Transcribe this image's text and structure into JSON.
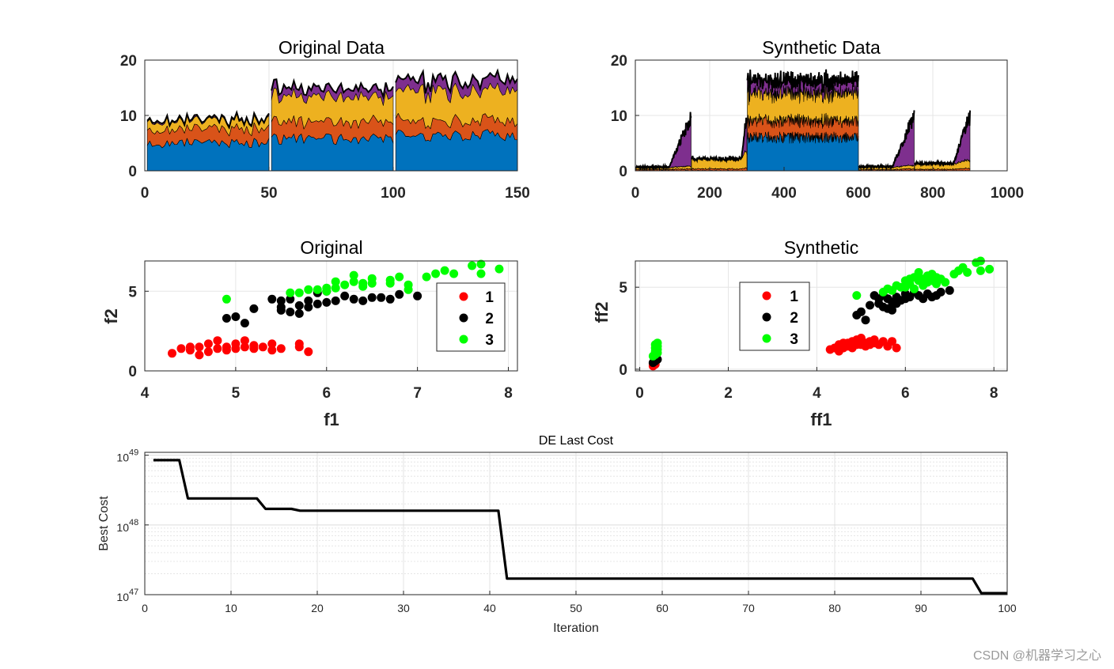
{
  "colors": {
    "blue": "#0072BD",
    "orange": "#D95319",
    "yellow": "#EDB120",
    "purple": "#7E2F8E",
    "red": "#FF0000",
    "black": "#000000",
    "green": "#00FF00"
  },
  "watermark": "CSDN @机器学习之心",
  "chart_data": [
    {
      "type": "area",
      "title": "Original Data",
      "xlabel": "",
      "ylabel": "",
      "xlim": [
        0,
        150
      ],
      "ylim": [
        0,
        20
      ],
      "xticks": [
        "0",
        "50",
        "100",
        "150"
      ],
      "yticks": [
        "0",
        "10",
        "20"
      ],
      "grid": true,
      "stacked": true,
      "series_colors": [
        "#0072BD",
        "#D95319",
        "#EDB120",
        "#7E2F8E"
      ],
      "segments": [
        {
          "x_start": 1,
          "x_end": 50,
          "layers": [
            5.0,
            2.5,
            1.5,
            0.3
          ]
        },
        {
          "x_start": 51,
          "x_end": 100,
          "layers": [
            5.7,
            3.0,
            4.5,
            1.5
          ]
        },
        {
          "x_start": 101,
          "x_end": 150,
          "layers": [
            6.4,
            2.6,
            5.4,
            2.0
          ]
        }
      ]
    },
    {
      "type": "area",
      "title": "Synthetic Data",
      "xlabel": "",
      "ylabel": "",
      "xlim": [
        0,
        1000
      ],
      "ylim": [
        0,
        20
      ],
      "xticks": [
        "0",
        "200",
        "400",
        "600",
        "800",
        "1000"
      ],
      "yticks": [
        "0",
        "10",
        "20"
      ],
      "grid": true,
      "stacked": true,
      "series_colors": [
        "#0072BD",
        "#D95319",
        "#EDB120",
        "#7E2F8E"
      ],
      "segments": [
        {
          "x_start": 1,
          "x_end": 150,
          "ramp_from": 0.6,
          "layers": [
            0.0,
            0.3,
            0.5,
            9.0
          ]
        },
        {
          "x_start": 151,
          "x_end": 300,
          "ramp_from": 0.9,
          "layers": [
            0.0,
            0.5,
            2.8,
            6.6
          ]
        },
        {
          "x_start": 301,
          "x_end": 600,
          "layers": [
            6.0,
            3.0,
            5.0,
            2.3
          ]
        },
        {
          "x_start": 601,
          "x_end": 750,
          "ramp_from": 0.6,
          "layers": [
            0.0,
            0.3,
            0.6,
            9.0
          ]
        },
        {
          "x_start": 751,
          "x_end": 900,
          "ramp_from": 0.7,
          "layers": [
            0.0,
            0.4,
            1.5,
            8.1
          ]
        }
      ]
    },
    {
      "type": "scatter",
      "title": "Original",
      "xlabel": "f1",
      "ylabel": "f2",
      "xlim": [
        4,
        8.1
      ],
      "ylim": [
        0,
        6.9
      ],
      "xticks": [
        "4",
        "5",
        "6",
        "7",
        "8"
      ],
      "yticks": [
        "0",
        "5"
      ],
      "grid": true,
      "legend": "right",
      "series": [
        {
          "name": "1",
          "color": "#FF0000",
          "points": [
            [
              4.3,
              1.1
            ],
            [
              4.4,
              1.4
            ],
            [
              4.5,
              1.3
            ],
            [
              4.6,
              1.0
            ],
            [
              4.6,
              1.5
            ],
            [
              4.7,
              1.2
            ],
            [
              4.7,
              1.7
            ],
            [
              4.8,
              1.4
            ],
            [
              4.8,
              1.9
            ],
            [
              4.9,
              1.5
            ],
            [
              5.0,
              1.4
            ],
            [
              5.0,
              1.7
            ],
            [
              5.1,
              1.5
            ],
            [
              5.1,
              1.9
            ],
            [
              5.2,
              1.6
            ],
            [
              5.2,
              1.4
            ],
            [
              5.3,
              1.5
            ],
            [
              5.4,
              1.7
            ],
            [
              5.4,
              1.3
            ],
            [
              5.5,
              1.4
            ],
            [
              5.7,
              1.7
            ],
            [
              5.7,
              1.5
            ],
            [
              5.8,
              1.2
            ],
            [
              4.5,
              1.5
            ],
            [
              4.9,
              1.3
            ]
          ]
        },
        {
          "name": "2",
          "color": "#000000",
          "points": [
            [
              4.9,
              3.3
            ],
            [
              5.0,
              3.4
            ],
            [
              5.1,
              3.0
            ],
            [
              5.2,
              3.9
            ],
            [
              5.4,
              4.5
            ],
            [
              5.5,
              4.0
            ],
            [
              5.5,
              3.8
            ],
            [
              5.6,
              4.5
            ],
            [
              5.6,
              3.7
            ],
            [
              5.7,
              4.1
            ],
            [
              5.7,
              3.6
            ],
            [
              5.8,
              4.4
            ],
            [
              5.9,
              4.9
            ],
            [
              5.9,
              4.2
            ],
            [
              6.0,
              4.3
            ],
            [
              6.0,
              5.0
            ],
            [
              6.1,
              4.4
            ],
            [
              6.2,
              4.7
            ],
            [
              6.3,
              4.5
            ],
            [
              6.4,
              4.4
            ],
            [
              6.5,
              4.6
            ],
            [
              6.6,
              4.6
            ],
            [
              6.7,
              4.5
            ],
            [
              6.8,
              4.8
            ],
            [
              7.0,
              4.7
            ],
            [
              5.8,
              4.0
            ],
            [
              5.5,
              4.4
            ]
          ]
        },
        {
          "name": "3",
          "color": "#00FF00",
          "points": [
            [
              4.9,
              4.5
            ],
            [
              5.6,
              4.9
            ],
            [
              5.7,
              4.9
            ],
            [
              5.8,
              5.1
            ],
            [
              5.9,
              5.1
            ],
            [
              6.0,
              5.0
            ],
            [
              6.1,
              5.6
            ],
            [
              6.2,
              5.4
            ],
            [
              6.3,
              5.6
            ],
            [
              6.3,
              6.0
            ],
            [
              6.4,
              5.5
            ],
            [
              6.4,
              5.3
            ],
            [
              6.5,
              5.5
            ],
            [
              6.5,
              5.8
            ],
            [
              6.7,
              5.7
            ],
            [
              6.7,
              5.5
            ],
            [
              6.8,
              5.9
            ],
            [
              6.9,
              5.1
            ],
            [
              6.9,
              5.4
            ],
            [
              7.1,
              5.9
            ],
            [
              7.2,
              6.1
            ],
            [
              7.3,
              6.3
            ],
            [
              7.4,
              6.1
            ],
            [
              7.6,
              6.6
            ],
            [
              7.7,
              6.7
            ],
            [
              7.7,
              6.1
            ],
            [
              7.9,
              6.4
            ],
            [
              6.0,
              5.2
            ],
            [
              6.1,
              5.2
            ]
          ]
        }
      ]
    },
    {
      "type": "scatter",
      "title": "Synthetic",
      "xlabel": "ff1",
      "ylabel": "ff2",
      "xlim": [
        -0.1,
        8.3
      ],
      "ylim": [
        -0.1,
        6.6
      ],
      "xticks": [
        "0",
        "2",
        "4",
        "6",
        "8"
      ],
      "yticks": [
        "0",
        "5"
      ],
      "grid": true,
      "legend": "center",
      "series": [
        {
          "name": "1",
          "color": "#FF0000",
          "points": [
            [
              0.3,
              0.2
            ],
            [
              0.35,
              0.3
            ],
            [
              0.3,
              0.35
            ],
            [
              4.3,
              1.2
            ],
            [
              4.4,
              1.3
            ],
            [
              4.5,
              1.1
            ],
            [
              4.5,
              1.5
            ],
            [
              4.6,
              1.3
            ],
            [
              4.7,
              1.4
            ],
            [
              4.7,
              1.6
            ],
            [
              4.8,
              1.3
            ],
            [
              4.8,
              1.7
            ],
            [
              4.9,
              1.5
            ],
            [
              4.9,
              1.8
            ],
            [
              5.0,
              1.5
            ],
            [
              5.0,
              1.9
            ],
            [
              5.1,
              1.6
            ],
            [
              5.1,
              1.4
            ],
            [
              5.2,
              1.7
            ],
            [
              5.2,
              1.5
            ],
            [
              5.3,
              1.8
            ],
            [
              5.3,
              1.6
            ],
            [
              5.4,
              1.5
            ],
            [
              5.5,
              1.7
            ],
            [
              5.6,
              1.4
            ],
            [
              5.7,
              1.7
            ],
            [
              5.8,
              1.3
            ],
            [
              4.6,
              1.6
            ],
            [
              5.0,
              1.7
            ]
          ]
        },
        {
          "name": "2",
          "color": "#000000",
          "points": [
            [
              0.3,
              0.4
            ],
            [
              0.35,
              0.5
            ],
            [
              0.4,
              0.6
            ],
            [
              0.35,
              0.7
            ],
            [
              4.9,
              3.3
            ],
            [
              5.0,
              3.5
            ],
            [
              5.1,
              3.0
            ],
            [
              5.2,
              3.9
            ],
            [
              5.3,
              4.5
            ],
            [
              5.4,
              4.0
            ],
            [
              5.5,
              3.8
            ],
            [
              5.5,
              4.5
            ],
            [
              5.6,
              4.3
            ],
            [
              5.6,
              3.7
            ],
            [
              5.7,
              4.1
            ],
            [
              5.7,
              3.6
            ],
            [
              5.8,
              4.4
            ],
            [
              5.9,
              4.2
            ],
            [
              6.0,
              4.3
            ],
            [
              6.0,
              4.6
            ],
            [
              6.1,
              4.4
            ],
            [
              6.2,
              4.7
            ],
            [
              6.3,
              4.5
            ],
            [
              6.4,
              4.3
            ],
            [
              6.5,
              4.6
            ],
            [
              6.6,
              4.4
            ],
            [
              6.7,
              4.5
            ],
            [
              6.8,
              4.7
            ],
            [
              7.0,
              4.8
            ],
            [
              5.8,
              4.0
            ],
            [
              5.4,
              4.3
            ]
          ]
        },
        {
          "name": "3",
          "color": "#00FF00",
          "points": [
            [
              0.3,
              0.8
            ],
            [
              0.35,
              0.9
            ],
            [
              0.4,
              1.0
            ],
            [
              0.35,
              1.1
            ],
            [
              0.4,
              1.2
            ],
            [
              0.35,
              1.3
            ],
            [
              0.4,
              1.4
            ],
            [
              0.35,
              1.5
            ],
            [
              0.4,
              1.6
            ],
            [
              4.9,
              4.5
            ],
            [
              5.5,
              4.7
            ],
            [
              5.6,
              4.9
            ],
            [
              5.7,
              4.8
            ],
            [
              5.8,
              5.1
            ],
            [
              5.9,
              5.0
            ],
            [
              6.0,
              5.0
            ],
            [
              6.0,
              5.4
            ],
            [
              6.1,
              5.2
            ],
            [
              6.2,
              5.6
            ],
            [
              6.2,
              4.9
            ],
            [
              6.3,
              5.4
            ],
            [
              6.3,
              5.9
            ],
            [
              6.4,
              5.5
            ],
            [
              6.4,
              5.1
            ],
            [
              6.5,
              5.3
            ],
            [
              6.5,
              5.7
            ],
            [
              6.6,
              5.4
            ],
            [
              6.7,
              5.6
            ],
            [
              6.7,
              5.2
            ],
            [
              6.8,
              5.5
            ],
            [
              6.9,
              5.3
            ],
            [
              7.1,
              5.8
            ],
            [
              7.2,
              6.0
            ],
            [
              7.3,
              6.2
            ],
            [
              7.4,
              5.9
            ],
            [
              7.6,
              6.5
            ],
            [
              7.7,
              6.6
            ],
            [
              7.7,
              6.0
            ],
            [
              7.9,
              6.1
            ],
            [
              6.1,
              5.5
            ],
            [
              6.6,
              5.8
            ]
          ]
        }
      ]
    },
    {
      "type": "line",
      "title": "DE Last Cost",
      "xlabel": "Iteration",
      "ylabel": "Best Cost",
      "xlim": [
        0,
        100
      ],
      "yscale": "log",
      "ylim": [
        1e+47,
        1.1e+49
      ],
      "xticks": [
        "0",
        "10",
        "20",
        "30",
        "40",
        "50",
        "60",
        "70",
        "80",
        "90",
        "100"
      ],
      "yticks": [
        {
          "base": "10",
          "exp": "47"
        },
        {
          "base": "10",
          "exp": "48"
        },
        {
          "base": "10",
          "exp": "49"
        }
      ],
      "grid": true,
      "series": [
        {
          "name": "",
          "color": "#000000",
          "x": [
            1,
            4,
            5,
            13,
            14,
            17,
            18,
            41,
            42,
            96,
            97,
            100
          ],
          "y": [
            8.5e+48,
            8.5e+48,
            2.4e+48,
            2.4e+48,
            1.7e+48,
            1.7e+48,
            1.6e+48,
            1.6e+48,
            1.7e+47,
            1.7e+47,
            1.05e+47,
            1.05e+47
          ]
        }
      ]
    }
  ]
}
